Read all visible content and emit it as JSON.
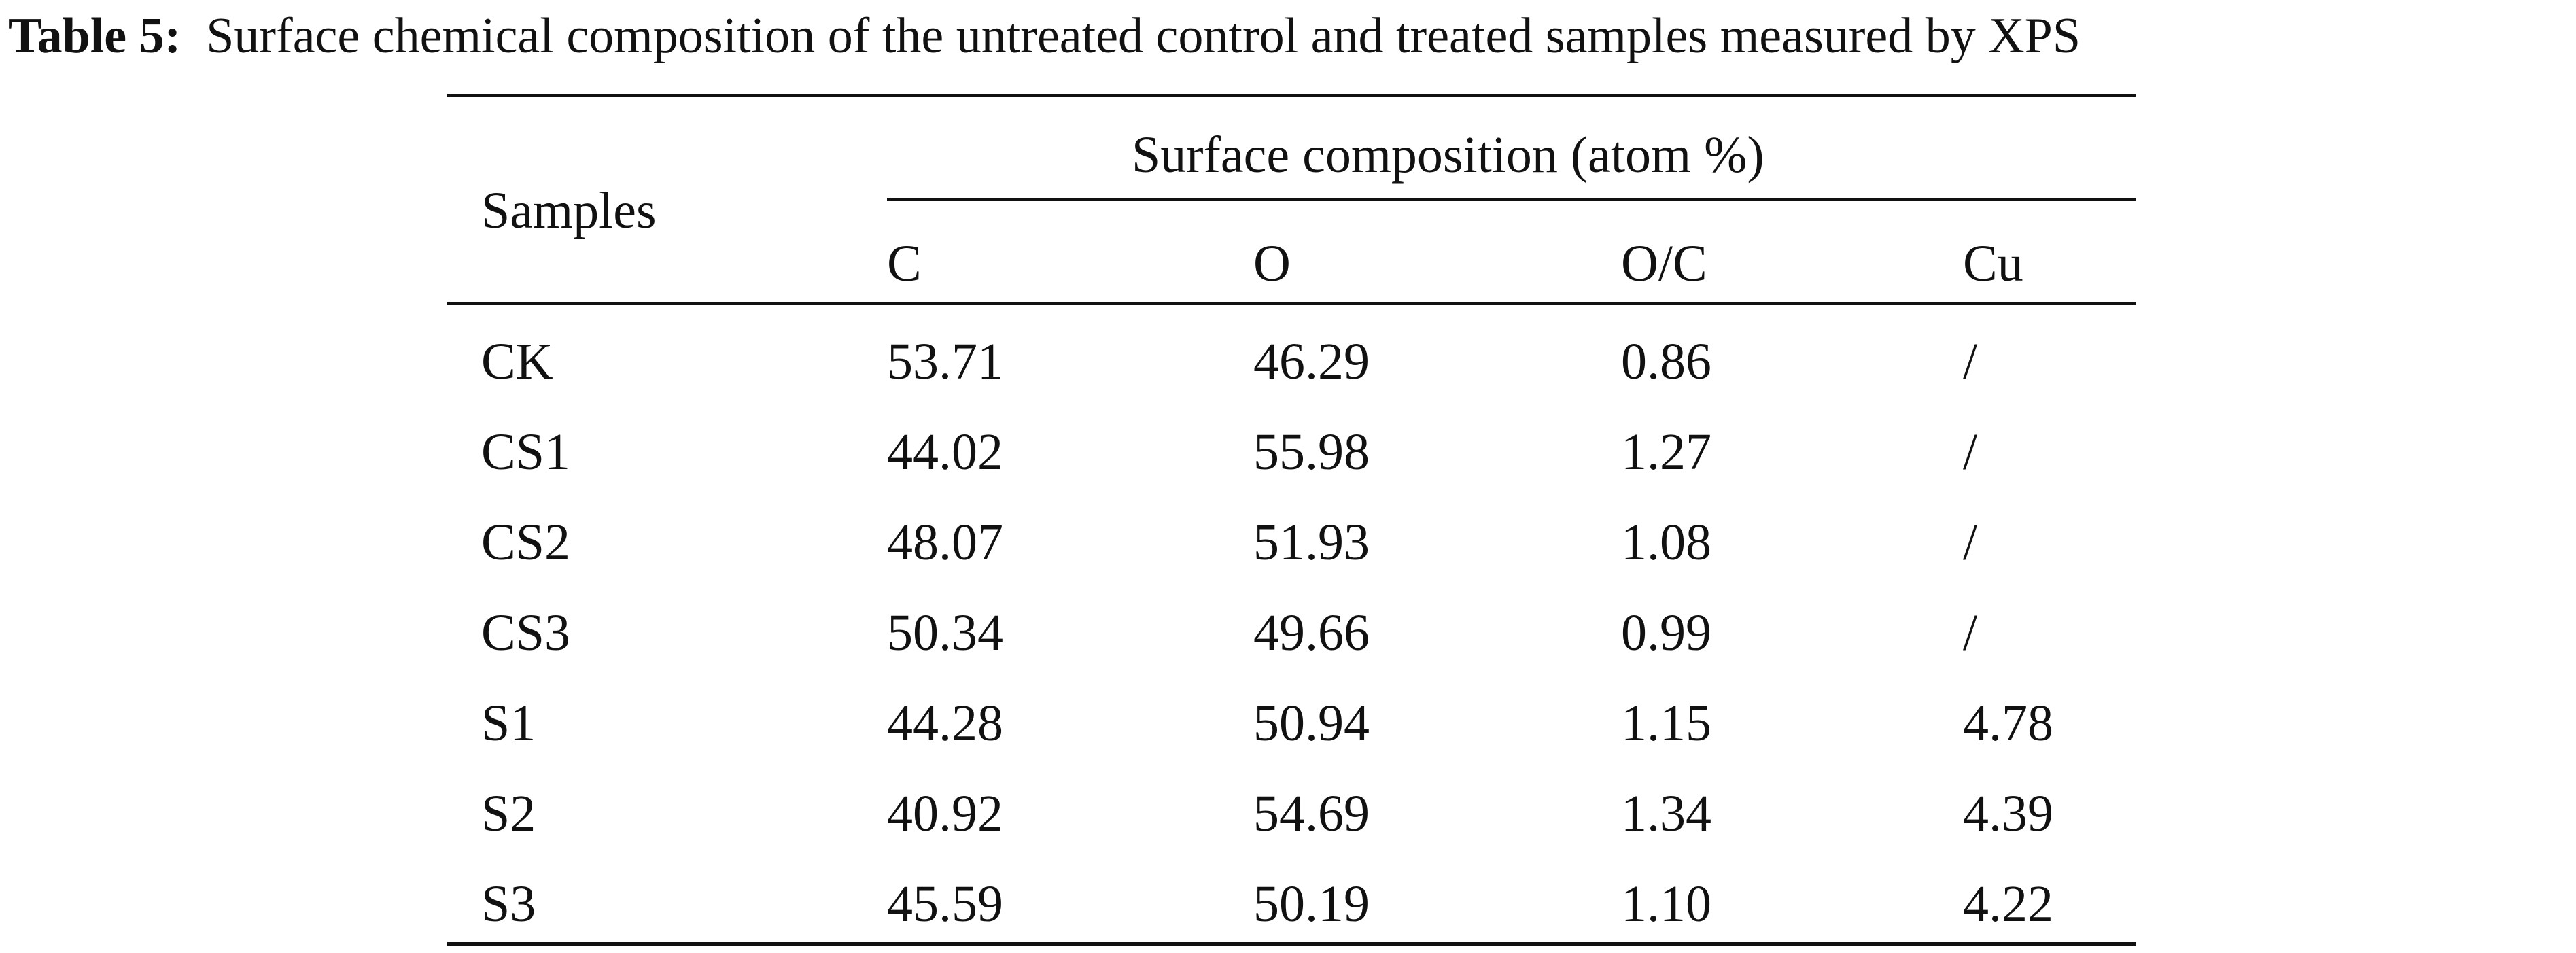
{
  "caption": {
    "label": "Table 5:",
    "text": "Surface chemical composition of the untreated control and treated samples measured by XPS"
  },
  "table": {
    "row_header": "Samples",
    "group_header": "Surface composition (atom %)",
    "columns": [
      "C",
      "O",
      "O/C",
      "Cu"
    ],
    "rows": [
      [
        "CK",
        "53.71",
        "46.29",
        "0.86",
        "/"
      ],
      [
        "CS1",
        "44.02",
        "55.98",
        "1.27",
        "/"
      ],
      [
        "CS2",
        "48.07",
        "51.93",
        "1.08",
        "/"
      ],
      [
        "CS3",
        "50.34",
        "49.66",
        "0.99",
        "/"
      ],
      [
        "S1",
        "44.28",
        "50.94",
        "1.15",
        "4.78"
      ],
      [
        "S2",
        "40.92",
        "54.69",
        "1.34",
        "4.39"
      ],
      [
        "S3",
        "45.59",
        "50.19",
        "1.10",
        "4.22"
      ]
    ]
  }
}
